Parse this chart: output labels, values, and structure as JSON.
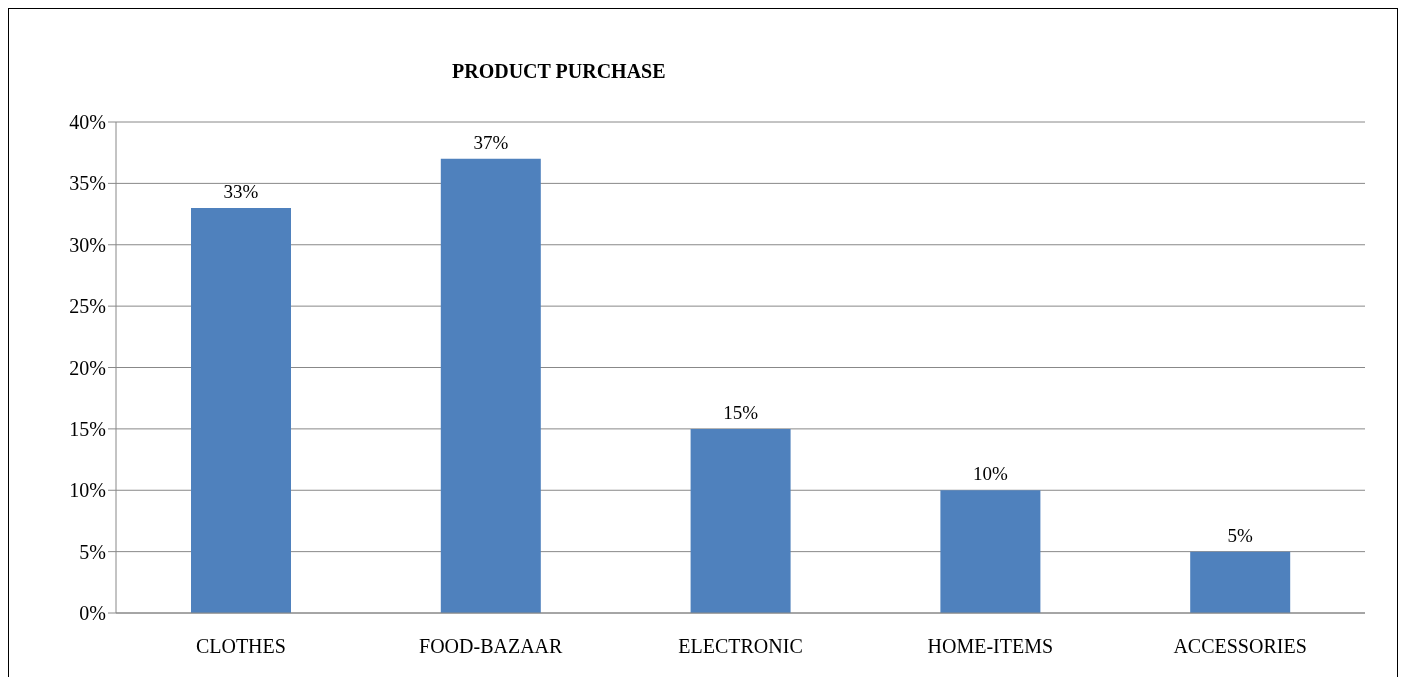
{
  "chart_data": {
    "type": "bar",
    "title": "PRODUCT PURCHASE",
    "categories": [
      "CLOTHES",
      "FOOD-BAZAAR",
      "ELECTRONIC",
      "HOME-ITEMS",
      "ACCESSORIES"
    ],
    "values": [
      33,
      37,
      15,
      10,
      5
    ],
    "value_labels": [
      "33%",
      "37%",
      "15%",
      "10%",
      "5%"
    ],
    "color": "#4f81bd",
    "ylim": [
      0,
      40
    ],
    "yticks": [
      {
        "value": 0,
        "label": "0%"
      },
      {
        "value": 5,
        "label": "5%"
      },
      {
        "value": 10,
        "label": "10%"
      },
      {
        "value": 15,
        "label": "15%"
      },
      {
        "value": 20,
        "label": "20%"
      },
      {
        "value": 25,
        "label": "25%"
      },
      {
        "value": 30,
        "label": "30%"
      },
      {
        "value": 35,
        "label": "35%"
      },
      {
        "value": 40,
        "label": "40%"
      }
    ],
    "grid": "y",
    "legend": false
  }
}
